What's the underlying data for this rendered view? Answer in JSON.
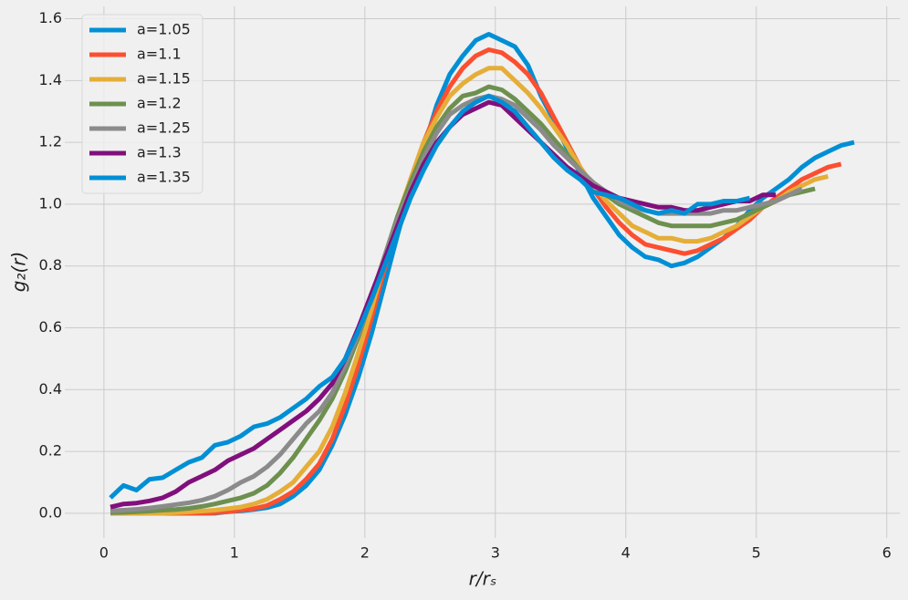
{
  "chart_data": {
    "type": "line",
    "xlabel": "r/rₛ",
    "ylabel": "g₂(r)",
    "x": [
      0.05,
      0.15,
      0.25,
      0.35,
      0.45,
      0.55,
      0.65,
      0.75,
      0.85,
      0.95,
      1.05,
      1.15,
      1.25,
      1.35,
      1.45,
      1.55,
      1.65,
      1.75,
      1.85,
      1.95,
      2.05,
      2.15,
      2.25,
      2.35,
      2.45,
      2.55,
      2.65,
      2.75,
      2.85,
      2.95,
      3.05,
      3.15,
      3.25,
      3.35,
      3.45,
      3.55,
      3.65,
      3.75,
      3.85,
      3.95,
      4.05,
      4.15,
      4.25,
      4.35,
      4.45,
      4.55,
      4.65,
      4.75,
      4.85,
      4.95,
      5.05,
      5.15,
      5.25,
      5.35,
      5.45,
      5.55,
      5.65,
      5.75
    ],
    "series": [
      {
        "name": "a=1.05",
        "color": "#008fd5",
        "values": [
          0,
          0,
          0,
          0,
          0,
          0,
          0,
          0,
          0,
          0.005,
          0.008,
          0.012,
          0.018,
          0.03,
          0.055,
          0.09,
          0.14,
          0.22,
          0.32,
          0.44,
          0.58,
          0.74,
          0.9,
          1.05,
          1.18,
          1.32,
          1.42,
          1.48,
          1.53,
          1.55,
          1.53,
          1.51,
          1.45,
          1.35,
          1.27,
          1.18,
          1.1,
          1.02,
          0.96,
          0.9,
          0.86,
          0.83,
          0.82,
          0.8,
          0.81,
          0.83,
          0.86,
          0.89,
          0.93,
          0.98,
          1.02,
          1.05,
          1.08,
          1.12,
          1.15,
          1.17,
          1.19,
          1.2
        ]
      },
      {
        "name": "a=1.1",
        "color": "#fc4f30",
        "values": [
          0,
          0,
          0,
          0,
          0,
          0,
          0,
          0,
          0.002,
          0.005,
          0.01,
          0.015,
          0.025,
          0.045,
          0.07,
          0.11,
          0.16,
          0.24,
          0.35,
          0.48,
          0.63,
          0.79,
          0.95,
          1.08,
          1.2,
          1.3,
          1.38,
          1.44,
          1.48,
          1.5,
          1.49,
          1.46,
          1.42,
          1.36,
          1.28,
          1.2,
          1.12,
          1.05,
          0.99,
          0.94,
          0.9,
          0.87,
          0.86,
          0.85,
          0.84,
          0.85,
          0.87,
          0.89,
          0.92,
          0.95,
          0.99,
          1.02,
          1.05,
          1.08,
          1.1,
          1.12,
          1.13,
          null
        ]
      },
      {
        "name": "a=1.15",
        "color": "#e5ae38",
        "values": [
          0,
          0,
          0,
          0,
          0,
          0.002,
          0.004,
          0.007,
          0.01,
          0.015,
          0.02,
          0.03,
          0.045,
          0.07,
          0.1,
          0.15,
          0.2,
          0.28,
          0.39,
          0.52,
          0.66,
          0.81,
          0.96,
          1.08,
          1.2,
          1.28,
          1.35,
          1.39,
          1.42,
          1.44,
          1.44,
          1.4,
          1.36,
          1.31,
          1.25,
          1.19,
          1.12,
          1.06,
          1.01,
          0.97,
          0.93,
          0.91,
          0.89,
          0.89,
          0.88,
          0.88,
          0.89,
          0.91,
          0.93,
          0.96,
          0.99,
          1.01,
          1.04,
          1.06,
          1.08,
          1.09,
          null,
          null
        ]
      },
      {
        "name": "a=1.2",
        "color": "#6d904f",
        "values": [
          0.002,
          0.003,
          0.005,
          0.007,
          0.01,
          0.012,
          0.016,
          0.022,
          0.03,
          0.04,
          0.05,
          0.065,
          0.09,
          0.13,
          0.18,
          0.24,
          0.3,
          0.37,
          0.46,
          0.57,
          0.7,
          0.83,
          0.96,
          1.07,
          1.17,
          1.25,
          1.31,
          1.35,
          1.36,
          1.38,
          1.37,
          1.34,
          1.3,
          1.26,
          1.21,
          1.16,
          1.11,
          1.07,
          1.03,
          1.0,
          0.98,
          0.96,
          0.94,
          0.93,
          0.93,
          0.93,
          0.93,
          0.94,
          0.95,
          0.97,
          0.99,
          1.01,
          1.03,
          1.04,
          1.05,
          null,
          null,
          null
        ]
      },
      {
        "name": "a=1.25",
        "color": "#8b8b8b",
        "values": [
          0.008,
          0.01,
          0.013,
          0.017,
          0.022,
          0.028,
          0.034,
          0.042,
          0.055,
          0.075,
          0.1,
          0.12,
          0.15,
          0.19,
          0.24,
          0.29,
          0.33,
          0.39,
          0.48,
          0.58,
          0.7,
          0.83,
          0.95,
          1.05,
          1.15,
          1.23,
          1.29,
          1.32,
          1.34,
          1.35,
          1.34,
          1.32,
          1.28,
          1.24,
          1.19,
          1.15,
          1.11,
          1.07,
          1.04,
          1.01,
          0.99,
          0.98,
          0.97,
          0.97,
          0.97,
          0.97,
          0.97,
          0.98,
          0.98,
          0.99,
          1.0,
          1.01,
          1.03,
          1.05,
          null,
          null,
          null,
          null
        ]
      },
      {
        "name": "a=1.3",
        "color": "#810f7c",
        "values": [
          0.02,
          0.03,
          0.033,
          0.04,
          0.05,
          0.07,
          0.1,
          0.12,
          0.14,
          0.17,
          0.19,
          0.21,
          0.24,
          0.27,
          0.3,
          0.33,
          0.37,
          0.42,
          0.5,
          0.6,
          0.71,
          0.82,
          0.93,
          1.04,
          1.13,
          1.2,
          1.25,
          1.29,
          1.31,
          1.33,
          1.32,
          1.28,
          1.24,
          1.2,
          1.16,
          1.12,
          1.09,
          1.06,
          1.04,
          1.02,
          1.01,
          1.0,
          0.99,
          0.99,
          0.98,
          0.98,
          0.99,
          1.0,
          1.01,
          1.01,
          1.03,
          1.03,
          null,
          null,
          null,
          null,
          null,
          null
        ]
      },
      {
        "name": "a=1.35",
        "color": "#008fd5",
        "values": [
          0.05,
          0.09,
          0.075,
          0.11,
          0.115,
          0.14,
          0.165,
          0.18,
          0.22,
          0.23,
          0.25,
          0.28,
          0.29,
          0.31,
          0.34,
          0.37,
          0.41,
          0.44,
          0.5,
          0.59,
          0.69,
          0.8,
          0.91,
          1.02,
          1.11,
          1.19,
          1.25,
          1.3,
          1.33,
          1.35,
          1.33,
          1.3,
          1.25,
          1.2,
          1.15,
          1.11,
          1.08,
          1.04,
          1.03,
          1.02,
          1.0,
          0.98,
          0.97,
          0.98,
          0.97,
          1.0,
          1.0,
          1.01,
          1.01,
          1.02,
          null,
          null,
          null,
          null,
          null,
          null,
          null,
          null
        ]
      }
    ],
    "xlim": [
      -0.3,
      6.1
    ],
    "ylim": [
      -0.08,
      1.64
    ],
    "xticks": [
      0,
      1,
      2,
      3,
      4,
      5,
      6
    ],
    "yticks": [
      {
        "value": 0,
        "label": "0.0"
      },
      {
        "value": 0.2,
        "label": "0.2"
      },
      {
        "value": 0.4,
        "label": "0.4"
      },
      {
        "value": 0.6,
        "label": "0.6"
      },
      {
        "value": 0.8,
        "label": "0.8"
      },
      {
        "value": 1,
        "label": "1.0"
      },
      {
        "value": 1.2,
        "label": "1.2"
      },
      {
        "value": 1.4,
        "label": "1.4"
      },
      {
        "value": 1.6,
        "label": "1.6"
      }
    ],
    "grid": true,
    "legend": "upper-left"
  }
}
